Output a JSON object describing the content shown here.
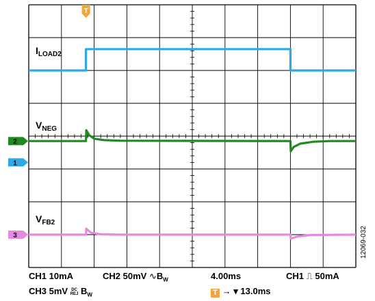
{
  "chart_data": {
    "type": "line",
    "title": "",
    "xlabel": "",
    "ylabel": "",
    "grid": true,
    "x_divisions": 10,
    "y_divisions": 8,
    "time_per_div": "4.00ms",
    "x_range_div": [
      0,
      10
    ],
    "y_range_div": [
      0,
      8
    ],
    "series": [
      {
        "name": "ILOAD2",
        "label_main": "I",
        "label_sub": "LOAD2",
        "channel": "1",
        "color": "#2fa8e6",
        "x": [
          0,
          1.75,
          1.75,
          8.0,
          8.0,
          10.0
        ],
        "y": [
          6.0,
          6.0,
          6.65,
          6.65,
          6.0,
          6.0
        ]
      },
      {
        "name": "VNEG",
        "label_main": "V",
        "label_sub": "NEG",
        "channel": "2",
        "color": "#1f8a1f",
        "x": [
          0,
          1.75,
          1.76,
          1.85,
          2.0,
          2.3,
          2.8,
          8.0,
          8.01,
          8.1,
          8.3,
          8.7,
          9.2,
          10.0
        ],
        "y": [
          3.85,
          3.85,
          4.18,
          4.03,
          3.92,
          3.88,
          3.86,
          3.85,
          3.54,
          3.67,
          3.77,
          3.83,
          3.85,
          3.85
        ]
      },
      {
        "name": "VFB2",
        "label_main": "V",
        "label_sub": "FB2",
        "channel": "3",
        "color": "#e58ae0",
        "x": [
          0,
          1.75,
          1.76,
          1.9,
          2.2,
          2.8,
          8.0,
          8.01,
          8.2,
          8.6,
          10.0
        ],
        "y": [
          1.0,
          1.0,
          1.18,
          1.06,
          1.01,
          1.0,
          1.0,
          0.88,
          0.94,
          0.99,
          1.0
        ]
      }
    ],
    "markers": [
      {
        "id": "ch2",
        "text": "2",
        "color": "#1f8a1f",
        "y": 3.85
      },
      {
        "id": "ch1",
        "text": "1",
        "color": "#2fa8e6",
        "y": 3.2
      },
      {
        "id": "ch3",
        "text": "3",
        "color": "#e58ae0",
        "y": 1.0
      }
    ],
    "trigger_marker": {
      "text": "T",
      "color": "#f0a640",
      "x": 1.75
    }
  },
  "status": {
    "ch1": "CH1  10mA",
    "ch2": "CH2  50mV",
    "ch2_bw": "W",
    "timebase": "4.00ms",
    "ch1_trig": "CH1",
    "trig_level": "50mA",
    "ch3": "CH3  5mV",
    "ch3_coupling_top": "DC",
    "ch3_coupling_bottom": "REJ",
    "ch3_bw": "W",
    "trig_box": "T",
    "trig_delay": "13.0ms"
  },
  "figure_id": "12069-032"
}
